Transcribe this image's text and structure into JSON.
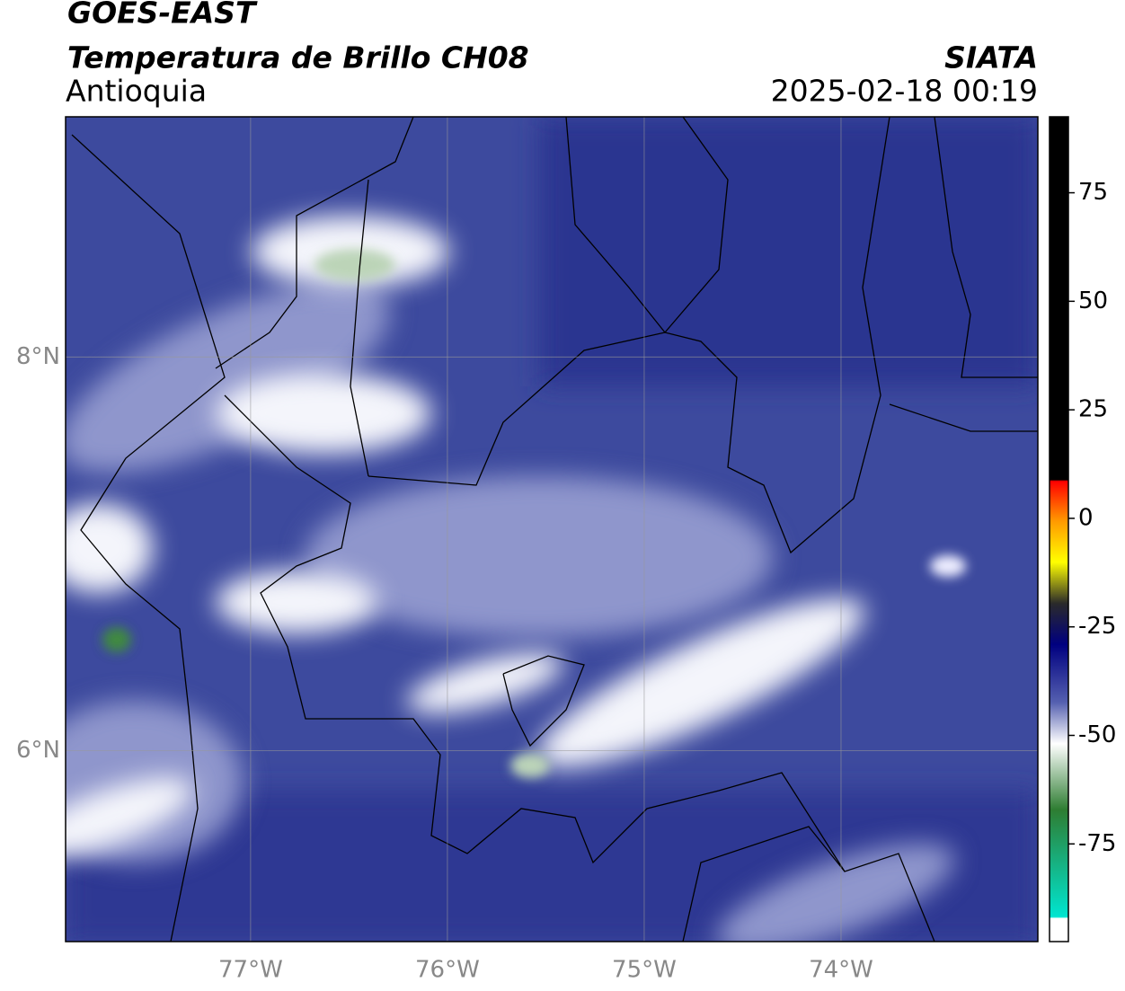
{
  "header": {
    "title": "GOES-EAST",
    "subtitle": "Temperatura de Brillo CH08",
    "region": "Antioquia",
    "source": "SIATA",
    "datetime": "2025-02-18 00:19"
  },
  "map": {
    "xlim": [
      -77.94,
      -73
    ],
    "ylim": [
      5.03,
      9.22
    ],
    "grid": true,
    "xticks": [
      {
        "value": -77,
        "label": "77°W"
      },
      {
        "value": -76,
        "label": "76°W"
      },
      {
        "value": -75,
        "label": "75°W"
      },
      {
        "value": -74,
        "label": "74°W"
      }
    ],
    "yticks": [
      {
        "value": 6,
        "label": "6°N"
      },
      {
        "value": 8,
        "label": "8°N"
      }
    ]
  },
  "colorbar": {
    "lim": [
      -97.5,
      92.5
    ],
    "ticks": [
      75,
      50,
      25,
      0,
      -25,
      -50,
      -75
    ]
  }
}
